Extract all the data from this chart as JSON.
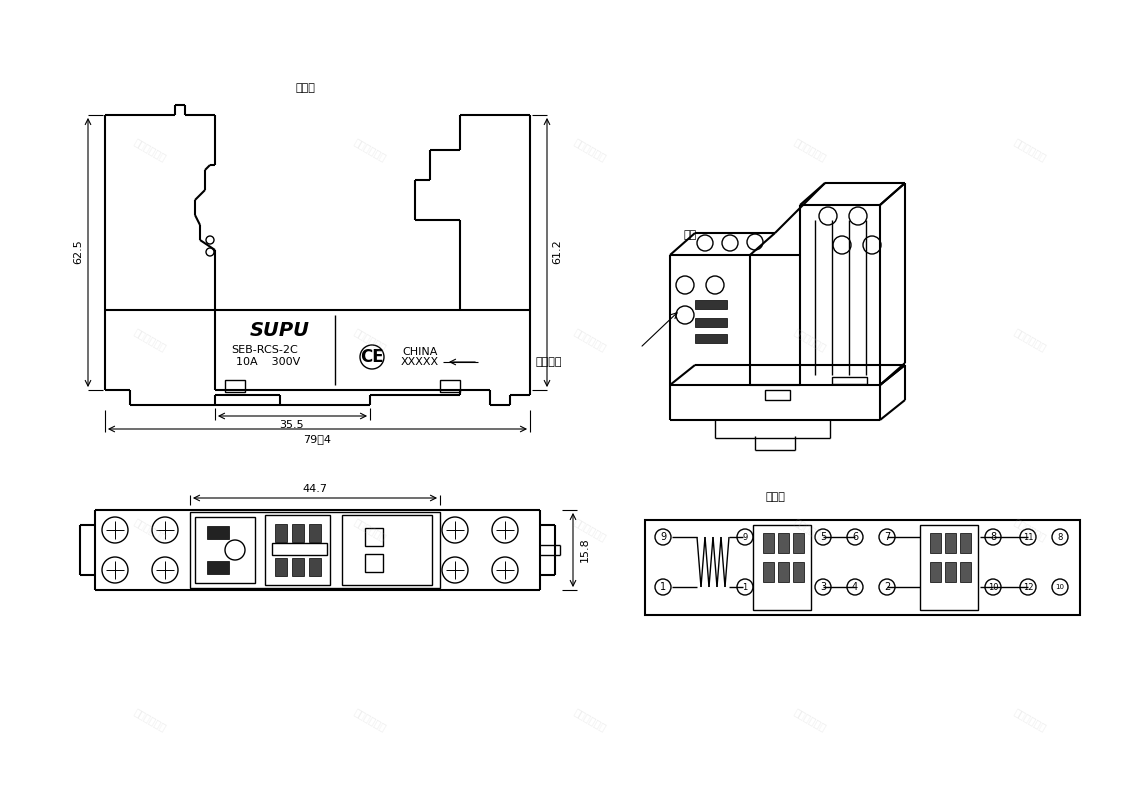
{
  "bg_color": "#ffffff",
  "line_color": "#000000",
  "front_view_label": "正面图",
  "side_label": "侧面",
  "wiring_label": "接线图",
  "date_code_label": "日期编码",
  "supu_text": "SUPU",
  "model_text": "SEB-RCS-2C",
  "spec_text": "10A    300V",
  "dim_625": "62.5",
  "dim_612": "61.2",
  "dim_355": "35.5",
  "dim_794": "79，4",
  "dim_447": "44.7",
  "dim_158": "15.8",
  "font_size_large": 11,
  "font_size_medium": 9,
  "font_size_small": 8,
  "font_size_supu": 14
}
